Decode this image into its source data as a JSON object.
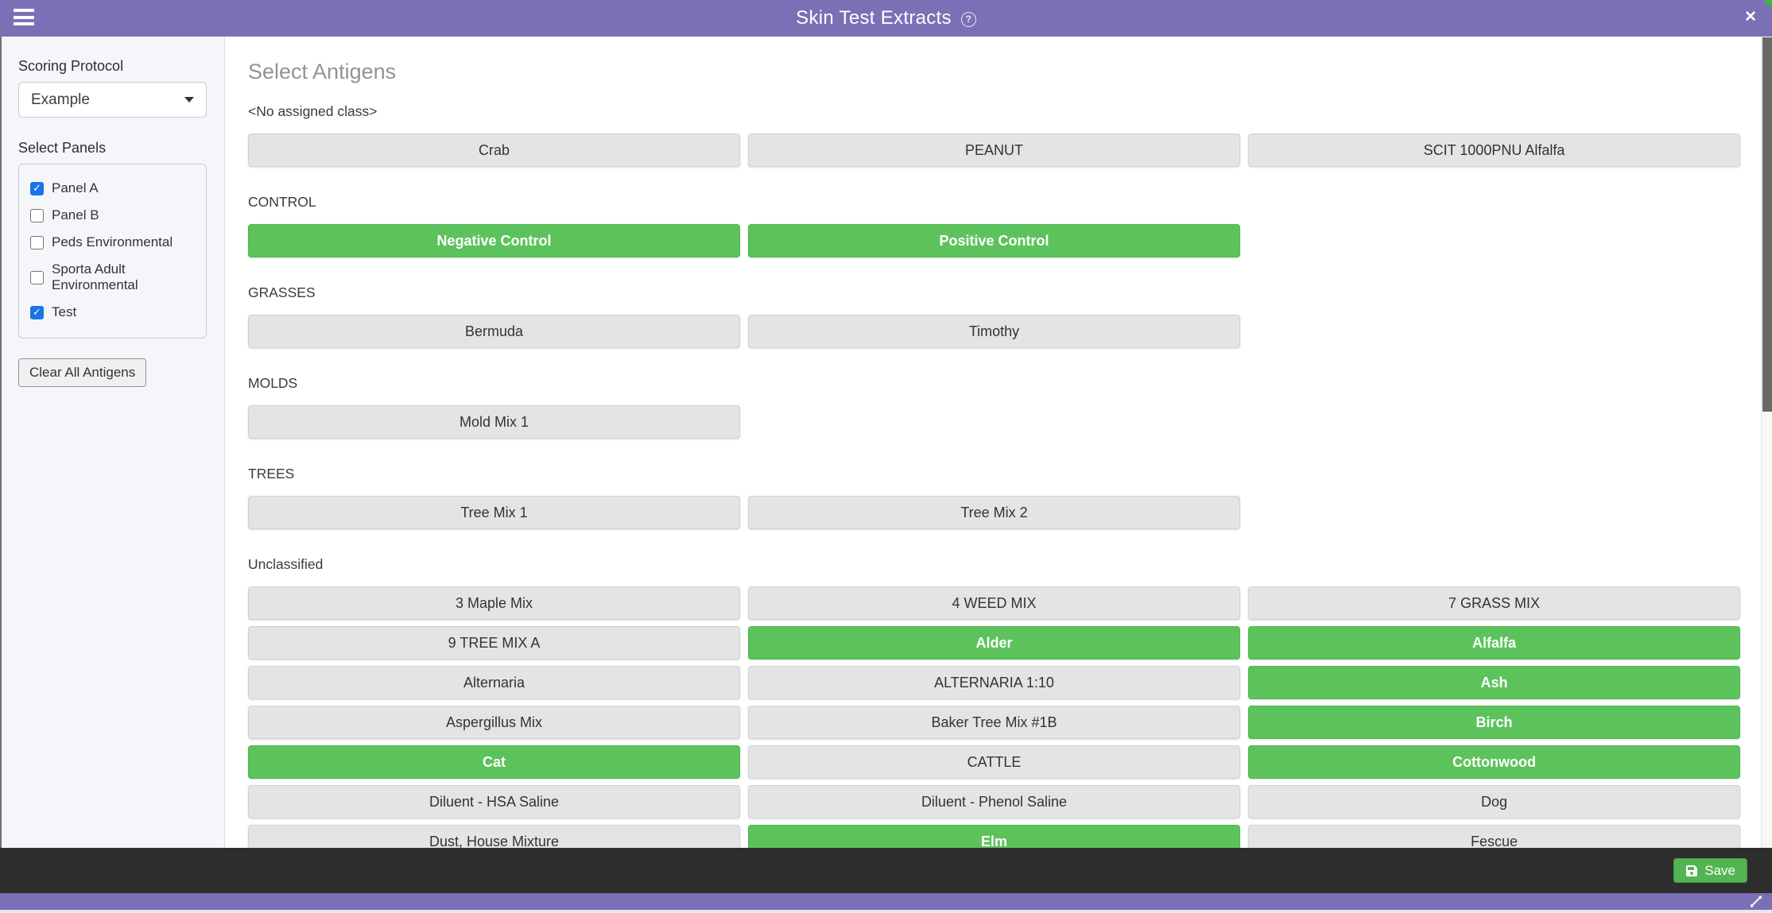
{
  "header": {
    "title": "Skin Test Extracts",
    "help_glyph": "?",
    "close_glyph": "✕"
  },
  "sidebar": {
    "scoring_protocol_label": "Scoring Protocol",
    "scoring_protocol_value": "Example",
    "select_panels_label": "Select Panels",
    "check_glyph": "✓",
    "panels": [
      {
        "label": "Panel A",
        "checked": true
      },
      {
        "label": "Panel B",
        "checked": false
      },
      {
        "label": "Peds Environmental",
        "checked": false
      },
      {
        "label": "Sporta Adult Environmental",
        "checked": false
      },
      {
        "label": "Test",
        "checked": true
      }
    ],
    "clear_button_label": "Clear All Antigens"
  },
  "main": {
    "title": "Select Antigens",
    "sections": [
      {
        "name": "<No assigned class>",
        "antigens": [
          {
            "label": "Crab",
            "selected": false
          },
          {
            "label": "PEANUT",
            "selected": false
          },
          {
            "label": "SCIT 1000PNU Alfalfa",
            "selected": false
          }
        ]
      },
      {
        "name": "CONTROL",
        "antigens": [
          {
            "label": "Negative Control",
            "selected": true
          },
          {
            "label": "Positive Control",
            "selected": true
          }
        ]
      },
      {
        "name": "GRASSES",
        "antigens": [
          {
            "label": "Bermuda",
            "selected": false
          },
          {
            "label": "Timothy",
            "selected": false
          }
        ]
      },
      {
        "name": "MOLDS",
        "antigens": [
          {
            "label": "Mold Mix 1",
            "selected": false
          }
        ]
      },
      {
        "name": "TREES",
        "antigens": [
          {
            "label": "Tree Mix 1",
            "selected": false
          },
          {
            "label": "Tree Mix 2",
            "selected": false
          }
        ]
      },
      {
        "name": "Unclassified",
        "antigens": [
          {
            "label": "3 Maple Mix",
            "selected": false
          },
          {
            "label": "4 WEED MIX",
            "selected": false
          },
          {
            "label": "7 GRASS MIX",
            "selected": false
          },
          {
            "label": "9 TREE MIX A",
            "selected": false
          },
          {
            "label": "Alder",
            "selected": true
          },
          {
            "label": "Alfalfa",
            "selected": true
          },
          {
            "label": "Alternaria",
            "selected": false
          },
          {
            "label": "ALTERNARIA 1:10",
            "selected": false
          },
          {
            "label": "Ash",
            "selected": true
          },
          {
            "label": "Aspergillus Mix",
            "selected": false
          },
          {
            "label": "Baker Tree Mix #1B",
            "selected": false
          },
          {
            "label": "Birch",
            "selected": true
          },
          {
            "label": "Cat",
            "selected": true
          },
          {
            "label": "CATTLE",
            "selected": false
          },
          {
            "label": "Cottonwood",
            "selected": true
          },
          {
            "label": "Diluent - HSA Saline",
            "selected": false
          },
          {
            "label": "Diluent - Phenol Saline",
            "selected": false
          },
          {
            "label": "Dog",
            "selected": false
          },
          {
            "label": "Dust, House Mixture",
            "selected": false
          },
          {
            "label": "Elm",
            "selected": true
          },
          {
            "label": "Fescue",
            "selected": false
          }
        ]
      }
    ]
  },
  "footer": {
    "save_label": "Save"
  },
  "colors": {
    "header_purple": "#7c6fb5",
    "selected_green": "#5cc35c",
    "save_green": "#52b452",
    "checkbox_blue": "#1a73e8",
    "footer_dark": "#2e2e2e",
    "unselected_gray": "#e4e4e4",
    "sidebar_bg": "#f4f6fa"
  }
}
